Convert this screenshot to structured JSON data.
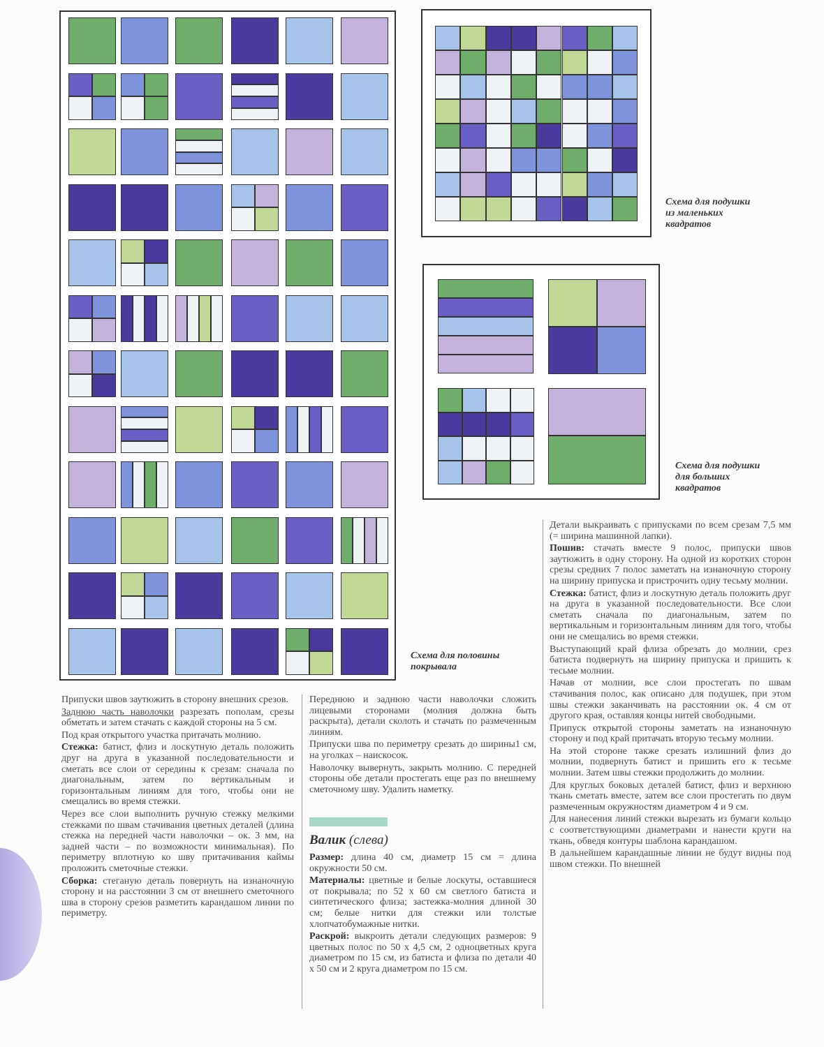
{
  "palette": {
    "purple": "#6a5fc4",
    "blue": "#7f92dc",
    "lightblue": "#a6c4ea",
    "green": "#6fae6a",
    "lightgreen": "#c2d896",
    "lilac": "#c4b4dc",
    "darkpurple": "#4a3a9e",
    "pale": "#eef2f4"
  },
  "captions": {
    "quilt": [
      "Схема для половины",
      "покрывала"
    ],
    "small_pillow": [
      "Схема для подушки",
      "из маленьких",
      "квадратов"
    ],
    "large_pillow": [
      "Схема для подушки",
      "для больших",
      "квадратов"
    ]
  },
  "column1": [
    {
      "text": "Припуски швов заутюжить в сторону внешних срезов."
    },
    {
      "underline": "Заднюю часть наволочки",
      "text": " разрезать пополам, срезы обметать и затем стачать с каждой стороны на 5 см."
    },
    {
      "text": "Под края открытого участка притачать молнию."
    },
    {
      "lead": "Стежка:",
      "text": " батист, флиз и лоскутную деталь положить друг на друга в указанной последовательности и сметать все слои от середины к срезам: сначала по диагональным, затем по вертикальным и горизонтальным линиям для того, чтобы они не смещались во время стежки."
    },
    {
      "text": "Через все слои выполнить ручную стежку мелкими стежками по швам стачивания цветных деталей (длина стежка на передней части наволочки – ок. 3 мм, на задней части – по возможности минимальная). По периметру вплотную ко шву притачивания каймы проложить сметочные стежки."
    },
    {
      "lead": "Сборка:",
      "text": " стеганую деталь повернуть на изнаночную сторону и на расстоянии 3 см от внешнего сметочного шва в сторону срезов разметить карандашом линии по периметру."
    }
  ],
  "column2": [
    {
      "text": "Переднюю и заднюю части наволочки сложить лицевыми сторонами (молния должна быть раскрыта), детали сколоть и стачать по размеченным линиям."
    },
    {
      "text": "Припуски шва по периметру срезать до ширины1 см, на уголках – наискосок."
    },
    {
      "text": "Наволочку вывернуть, закрыть молнию. С передней стороны обе детали простегать еще раз по внешнему сметочному шву. Удалить наметку."
    }
  ],
  "heading": {
    "bold": "Валик",
    "rest": " (слева)"
  },
  "column2b": [
    {
      "lead": "Размер:",
      "text": " длина 40 см, диаметр 15 см = длина окружности 50 см."
    },
    {
      "lead": "Материалы:",
      "text": " цветные и белые лоскуты, оставшиеся от покрывала; по 52 х 60 см светлого батиста и синтетического флиза; застежка-молния длиной 30 см; белые нитки для стежки или толстые хлопчатобумажные нитки."
    },
    {
      "lead": "Раскрой:",
      "text": " выкроить детали следующих размеров: 9 цветных полос по 50 х 4,5 см, 2 одноцветных круга диаметром по 15 см, из батиста и флиза по детали 40 х 50 см и 2 круга диаметром по 15 см."
    }
  ],
  "column3": [
    {
      "text": "Детали выкраивать с припусками по всем срезам 7,5 мм (= ширина машинной лапки)."
    },
    {
      "lead": "Пошив:",
      "text": " стачать вместе 9 полос, припуски швов заутюжить в одну сторону. На одной из коротких сторон срезы средних 7 полос заметать на изнаночную сторону на ширину припуска и пристрочить одну тесьму молнии."
    },
    {
      "lead": "Стежка:",
      "text": " батист, флиз и лоскутную деталь положить друг на друга в указанной последовательности. Все слои сметать сначала по диагональным, затем по вертикальным и горизонтальным линиям для того, чтобы они не смещались во время стежки."
    },
    {
      "text": "Выступающий край флиза обрезать до молнии, срез батиста подвернуть на ширину припуска и пришить к тесьме молнии."
    },
    {
      "text": "Начав от молнии, все слои простегать по швам стачивания полос, как описано для подушек, при этом швы стежки заканчивать на расстоянии ок. 4 см от другого края, оставляя концы нитей свободными."
    },
    {
      "text": "Припуск открытой стороны заметать на изнаночную сторону и под край притачать вторую тесьму молнии."
    },
    {
      "text": "На этой стороне также срезать излишний флиз до молнии, подвернуть батист и пришить его к тесьме молнии. Затем швы стежки продолжить до молнии."
    },
    {
      "text": "Для круглых боковых деталей батист, флиз и верхнюю ткань сметать вместе, затем все слои простегать по двум размеченным окружностям диаметром 4 и 9 см."
    },
    {
      "text": "Для нанесения линий стежки вырезать из бумаги кольцо с соответствующими диаметрами и нанести круги на ткань, обведя контуры шаблона карандашом."
    },
    {
      "text": "В дальнейшем карандашные линии не будут видны под швом стежки. По внешней"
    }
  ]
}
